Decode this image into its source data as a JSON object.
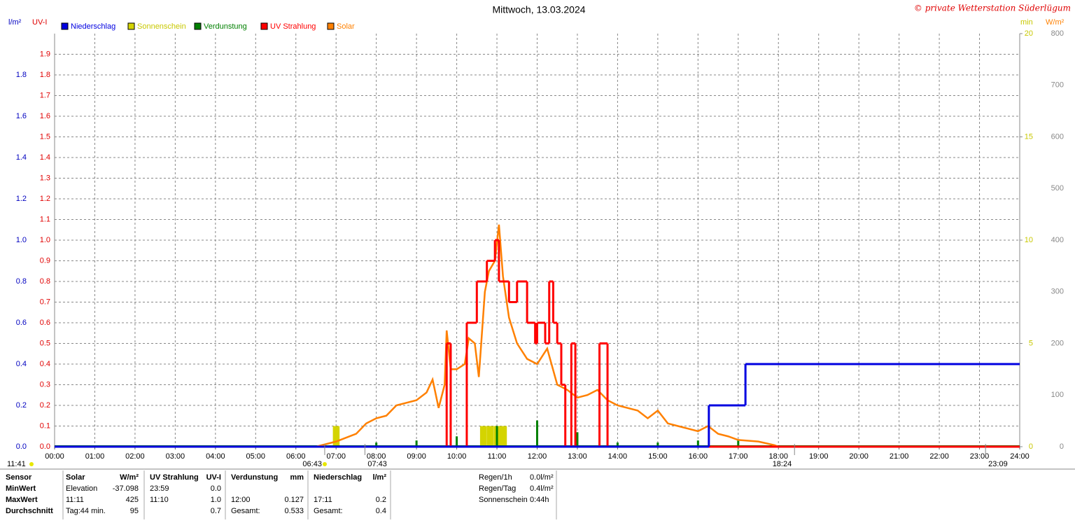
{
  "chart_data": {
    "type": "line",
    "title": "Mittwoch, 13.03.2024",
    "credit": "© private Wetterstation Süderlügum",
    "ylabel": "l/m²",
    "y2label": "UV-I",
    "y3label": "min",
    "y4label": "W/m²",
    "xlim": [
      0,
      24
    ],
    "xticks": [
      {
        "value": 0,
        "label": "00:00"
      },
      {
        "value": 1,
        "label": "01:00"
      },
      {
        "value": 2,
        "label": "02:00"
      },
      {
        "value": 3,
        "label": "03:00"
      },
      {
        "value": 4,
        "label": "04:00"
      },
      {
        "value": 5,
        "label": "05:00"
      },
      {
        "value": 6,
        "label": "06:00"
      },
      {
        "value": 7,
        "label": "07:00"
      },
      {
        "value": 8,
        "label": "08:00"
      },
      {
        "value": 9,
        "label": "09:00"
      },
      {
        "value": 10,
        "label": "10:00"
      },
      {
        "value": 11,
        "label": "11:00"
      },
      {
        "value": 12,
        "label": "12:00"
      },
      {
        "value": 13,
        "label": "13:00"
      },
      {
        "value": 14,
        "label": "14:00"
      },
      {
        "value": 15,
        "label": "15:00"
      },
      {
        "value": 16,
        "label": "16:00"
      },
      {
        "value": 17,
        "label": "17:00"
      },
      {
        "value": 18,
        "label": "18:00"
      },
      {
        "value": 19,
        "label": "19:00"
      },
      {
        "value": 20,
        "label": "20:00"
      },
      {
        "value": 21,
        "label": "21:00"
      },
      {
        "value": 22,
        "label": "22:00"
      },
      {
        "value": 23,
        "label": "23:00"
      },
      {
        "value": 24,
        "label": "24:00"
      }
    ],
    "ylim": [
      0,
      2
    ],
    "yticks": [
      {
        "value": 0,
        "label": "0.0"
      },
      0.2,
      0.4,
      0.6,
      0.8,
      {
        "value": 1,
        "label": "1.0"
      },
      1.2,
      1.4,
      1.6,
      1.8
    ],
    "y2lim": [
      0,
      2
    ],
    "y2ticks": [
      {
        "value": 0,
        "label": "0.0"
      },
      0.1,
      0.2,
      0.3,
      0.4,
      0.5,
      0.6,
      0.7,
      0.8,
      0.9,
      {
        "value": 1,
        "label": "1.0"
      },
      1.1,
      1.2,
      1.3,
      1.4,
      1.5,
      1.6,
      1.7,
      1.8,
      1.9
    ],
    "y3lim": [
      0,
      20
    ],
    "y3ticks": [
      0,
      5,
      10,
      15,
      20
    ],
    "y4lim": [
      0,
      800
    ],
    "y4ticks": [
      0,
      100,
      200,
      300,
      400,
      500,
      600,
      700,
      800
    ],
    "grid": true,
    "series": [
      {
        "name": "Niederschlag",
        "color": "#0000e0",
        "style": "step",
        "axis": "y",
        "x": [
          0,
          16.27,
          17.18,
          24
        ],
        "values": [
          0,
          0.2,
          0.4,
          0.4
        ]
      },
      {
        "name": "Sonnenschein",
        "color": "#d4d400",
        "style": "bar",
        "axis": "y3",
        "x": [
          6.92,
          10.58,
          10.75,
          10.92,
          11.08
        ],
        "values": [
          1,
          1,
          1,
          1,
          1
        ]
      },
      {
        "name": "Verdunstung",
        "color": "#008000",
        "style": "spike",
        "axis": "y",
        "x": [
          8,
          9,
          10,
          11,
          12,
          13,
          14,
          15,
          16,
          17
        ],
        "values": [
          0.02,
          0.03,
          0.05,
          0.1,
          0.127,
          0.07,
          0.02,
          0.02,
          0.03,
          0.03
        ]
      },
      {
        "name": "UV Strahlung",
        "color": "#ff0000",
        "style": "step",
        "axis": "y2",
        "x": [
          0,
          9.75,
          9.85,
          10.25,
          10.5,
          10.75,
          10.95,
          11.05,
          11.3,
          11.5,
          11.75,
          11.95,
          12.0,
          12.2,
          12.3,
          12.4,
          12.5,
          12.6,
          12.7,
          12.85,
          12.95,
          13.55,
          13.75,
          24
        ],
        "values": [
          0,
          0.5,
          0,
          0.6,
          0.8,
          0.9,
          1.0,
          0.8,
          0.7,
          0.8,
          0.6,
          0.5,
          0.6,
          0.5,
          0.8,
          0.6,
          0.5,
          0.3,
          0,
          0.5,
          0,
          0.5,
          0,
          0
        ]
      },
      {
        "name": "Solar",
        "color": "#ff8000",
        "style": "line",
        "axis": "y4",
        "x": [
          6.5,
          7.0,
          7.5,
          7.75,
          8.0,
          8.25,
          8.5,
          8.75,
          9.0,
          9.25,
          9.4,
          9.55,
          9.7,
          9.75,
          9.85,
          10.0,
          10.2,
          10.3,
          10.45,
          10.55,
          10.7,
          10.8,
          10.95,
          11.05,
          11.15,
          11.3,
          11.5,
          11.75,
          12.0,
          12.25,
          12.5,
          12.75,
          13.0,
          13.25,
          13.5,
          13.75,
          14.0,
          14.25,
          14.5,
          14.75,
          15.0,
          15.25,
          15.5,
          15.75,
          16.0,
          16.25,
          16.5,
          16.75,
          17.0,
          17.5,
          17.9,
          18.0
        ],
        "values": [
          0,
          10,
          25,
          45,
          55,
          60,
          80,
          85,
          90,
          105,
          130,
          75,
          120,
          225,
          150,
          150,
          160,
          210,
          200,
          135,
          300,
          340,
          360,
          430,
          330,
          250,
          200,
          170,
          160,
          190,
          120,
          110,
          95,
          100,
          110,
          90,
          80,
          75,
          70,
          55,
          70,
          45,
          40,
          35,
          30,
          40,
          25,
          20,
          13,
          10,
          3,
          0
        ]
      }
    ],
    "markers": [
      {
        "value": 6.717,
        "label": "06:43"
      },
      {
        "value": 7.717,
        "label": "07:43"
      },
      {
        "value": 18.4,
        "label": "18:24"
      },
      {
        "value": 23.15,
        "label": "23:09"
      }
    ],
    "day_length": "11:41"
  },
  "footer": {
    "rows": [
      [
        "Sensor",
        "Solar",
        "W/m²",
        "UV Strahlung",
        "UV-I",
        "Verdunstung",
        "mm",
        "Niederschlag",
        "l/m²"
      ],
      [
        "MinWert",
        "Elevation",
        "-37.098",
        "23:59",
        "0.0",
        null,
        null,
        null,
        null
      ],
      [
        "MaxWert",
        "11:11",
        "425",
        "11:10",
        "1.0",
        "12:00",
        "0.127",
        "17:11",
        "0.2"
      ],
      [
        "Durchschnitt",
        "Tag:44 min.",
        "95",
        null,
        "0.7",
        "Gesamt:",
        "0.533",
        "Gesamt:",
        "0.4"
      ]
    ],
    "stats": [
      [
        "Regen/1h",
        "0.0l/m²"
      ],
      [
        "Regen/Tag",
        "0.4l/m²"
      ],
      [
        "Sonnenschein",
        "0:44h"
      ]
    ]
  }
}
